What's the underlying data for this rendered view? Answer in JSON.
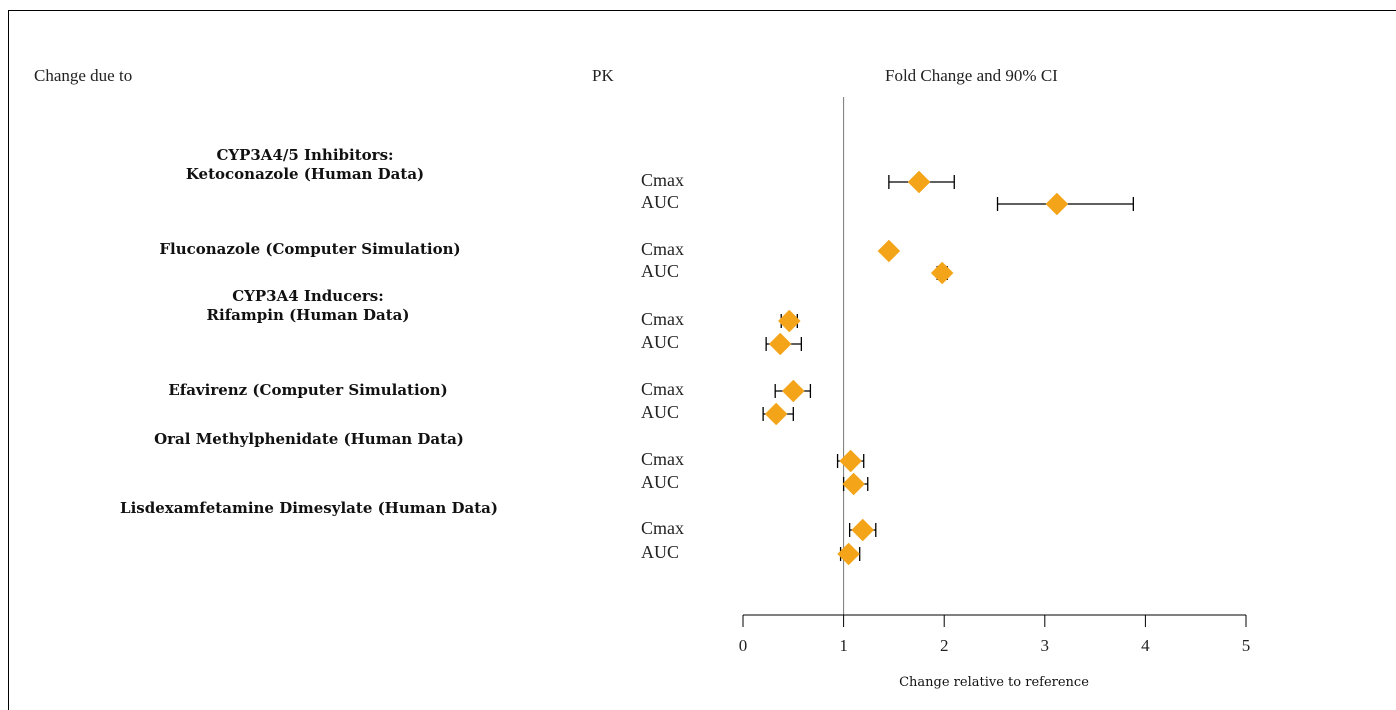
{
  "headers": {
    "change_due_to": "Change due to",
    "pk": "PK",
    "fold_change": "Fold Change and 90% CI"
  },
  "groups": [
    {
      "line1": "CYP3A4/5 Inhibitors:",
      "line2": "Ketoconazole (Human Data)"
    },
    {
      "line1": "Fluconazole (Computer Simulation)",
      "line2": ""
    },
    {
      "line1": "CYP3A4 Inducers:",
      "line2": "Rifampin  (Human Data)"
    },
    {
      "line1": "Efavirenz (Computer Simulation)",
      "line2": ""
    },
    {
      "line1": "Oral Methylphenidate (Human Data)",
      "line2": ""
    },
    {
      "line1": "Lisdexamfetamine Dimesylate (Human Data)",
      "line2": ""
    }
  ],
  "chart_data": {
    "type": "scatter",
    "title": "Fold Change and 90% CI",
    "xlabel": "Change relative to reference",
    "xlim": [
      0,
      5
    ],
    "xticks": [
      "0",
      "1",
      "2",
      "3",
      "4",
      "5"
    ],
    "reference_line": 1,
    "marker_color": "#f4a418",
    "rows": [
      {
        "group": "Ketoconazole (Human Data)",
        "pk": "Cmax",
        "estimate": 1.75,
        "lower": 1.45,
        "upper": 2.1
      },
      {
        "group": "Ketoconazole (Human Data)",
        "pk": "AUC",
        "estimate": 3.12,
        "lower": 2.53,
        "upper": 3.88
      },
      {
        "group": "Fluconazole (Computer Simulation)",
        "pk": "Cmax",
        "estimate": 1.45,
        "lower": 1.42,
        "upper": 1.48
      },
      {
        "group": "Fluconazole (Computer Simulation)",
        "pk": "AUC",
        "estimate": 1.98,
        "lower": 1.93,
        "upper": 2.03
      },
      {
        "group": "Rifampin  (Human Data)",
        "pk": "Cmax",
        "estimate": 0.46,
        "lower": 0.38,
        "upper": 0.54
      },
      {
        "group": "Rifampin  (Human Data)",
        "pk": "AUC",
        "estimate": 0.37,
        "lower": 0.23,
        "upper": 0.58
      },
      {
        "group": "Efavirenz (Computer Simulation)",
        "pk": "Cmax",
        "estimate": 0.5,
        "lower": 0.32,
        "upper": 0.67
      },
      {
        "group": "Efavirenz (Computer Simulation)",
        "pk": "AUC",
        "estimate": 0.33,
        "lower": 0.2,
        "upper": 0.5
      },
      {
        "group": "Oral Methylphenidate (Human Data)",
        "pk": "Cmax",
        "estimate": 1.07,
        "lower": 0.94,
        "upper": 1.2
      },
      {
        "group": "Oral Methylphenidate (Human Data)",
        "pk": "AUC",
        "estimate": 1.1,
        "lower": 1.0,
        "upper": 1.24
      },
      {
        "group": "Lisdexamfetamine Dimesylate (Human Data)",
        "pk": "Cmax",
        "estimate": 1.19,
        "lower": 1.06,
        "upper": 1.32
      },
      {
        "group": "Lisdexamfetamine Dimesylate (Human Data)",
        "pk": "AUC",
        "estimate": 1.05,
        "lower": 0.97,
        "upper": 1.16
      }
    ]
  }
}
